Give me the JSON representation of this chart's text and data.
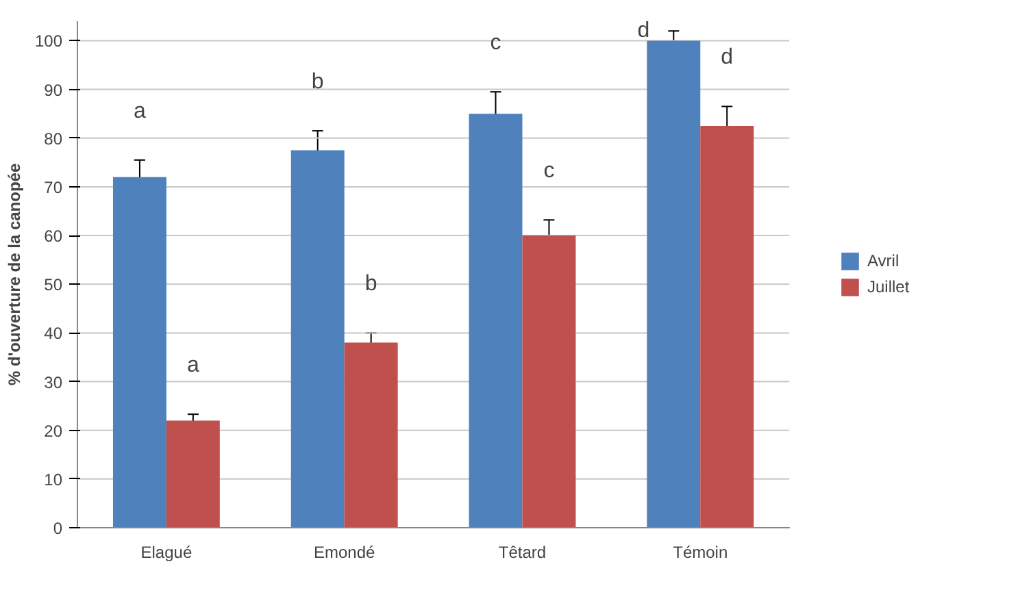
{
  "chart_data": {
    "type": "bar",
    "ylabel": "% d'ouverture de la canopée",
    "categories": [
      "Elagué",
      "Emondé",
      "Têtard",
      "Témoin"
    ],
    "series": [
      {
        "name": "Avril",
        "color": "#4f81bd",
        "values": [
          72,
          77.5,
          85,
          100
        ],
        "errors": [
          3.5,
          4,
          4.5,
          2
        ]
      },
      {
        "name": "Juillet",
        "color": "#c0504d",
        "values": [
          22,
          38,
          60,
          82.5
        ],
        "errors": [
          1.3,
          2,
          3.2,
          4
        ]
      }
    ],
    "ylim": [
      0,
      104
    ],
    "yticks": [
      0,
      10,
      20,
      30,
      40,
      50,
      60,
      70,
      80,
      90,
      100
    ],
    "grid": "y",
    "legend": "right",
    "annotations": [
      "a",
      "a",
      "b",
      "b",
      "c",
      "c",
      "d",
      "d"
    ]
  }
}
